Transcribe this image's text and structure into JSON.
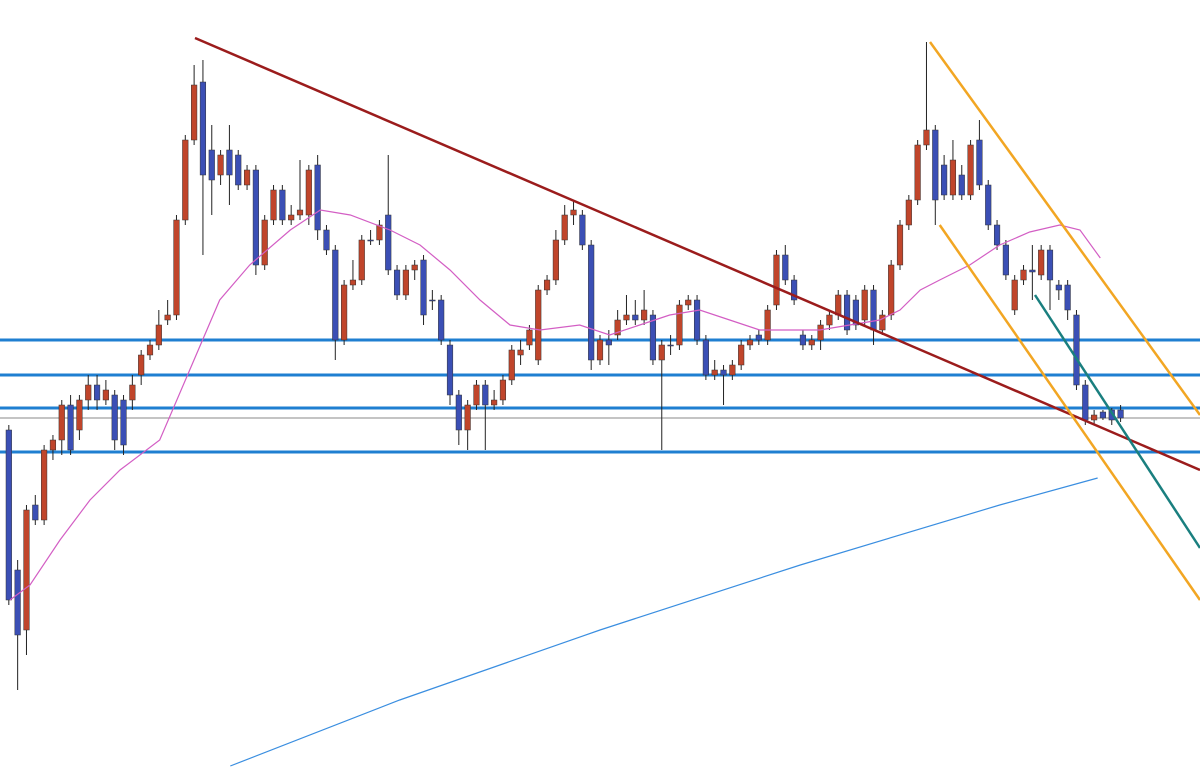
{
  "chart_data": {
    "type": "candlestick",
    "xlim": [
      -1,
      135
    ],
    "ylim": [
      0,
      768
    ],
    "up_color": "#c0452b",
    "down_color": "#3b4fb5",
    "wick_color": "#222222",
    "open": [
      338,
      198,
      138,
      263,
      248,
      318,
      328,
      363,
      338,
      368,
      383,
      368,
      373,
      368,
      368,
      393,
      413,
      423,
      448,
      453,
      548,
      628,
      686,
      618,
      593,
      618,
      613,
      583,
      598,
      503,
      548,
      578,
      548,
      553,
      553,
      603,
      538,
      518,
      428,
      483,
      488,
      528,
      528,
      553,
      498,
      473,
      498,
      508,
      468,
      468,
      423,
      373,
      338,
      363,
      383,
      363,
      368,
      388,
      413,
      423,
      408,
      478,
      488,
      528,
      553,
      553,
      523,
      408,
      428,
      433,
      448,
      453,
      448,
      453,
      408,
      423,
      423,
      463,
      468,
      428,
      393,
      398,
      393,
      403,
      423,
      433,
      428,
      463,
      513,
      488,
      433,
      423,
      428,
      443,
      453,
      473,
      468,
      448,
      478,
      438,
      453,
      503,
      543,
      568,
      623,
      638,
      603,
      573,
      593,
      573,
      628,
      583,
      543,
      523,
      458,
      488,
      498,
      493,
      518,
      483,
      483,
      453,
      383,
      348,
      356,
      358,
      358
    ],
    "high": [
      343,
      208,
      263,
      273,
      323,
      333,
      368,
      373,
      373,
      393,
      393,
      388,
      378,
      373,
      393,
      418,
      428,
      458,
      468,
      553,
      633,
      703,
      708,
      643,
      618,
      643,
      618,
      603,
      603,
      553,
      583,
      583,
      563,
      608,
      603,
      613,
      543,
      523,
      488,
      508,
      533,
      538,
      548,
      613,
      503,
      503,
      508,
      513,
      478,
      473,
      428,
      378,
      368,
      388,
      388,
      378,
      393,
      423,
      428,
      443,
      483,
      493,
      538,
      563,
      568,
      558,
      528,
      433,
      438,
      458,
      473,
      468,
      478,
      458,
      428,
      433,
      468,
      473,
      473,
      433,
      408,
      403,
      408,
      428,
      433,
      438,
      463,
      518,
      523,
      493,
      438,
      433,
      448,
      458,
      478,
      478,
      473,
      483,
      483,
      458,
      508,
      548,
      573,
      628,
      726,
      643,
      613,
      628,
      603,
      628,
      648,
      588,
      548,
      528,
      493,
      503,
      523,
      523,
      523,
      488,
      488,
      458,
      388,
      358,
      358,
      360,
      363
    ],
    "low": [
      163,
      78,
      113,
      243,
      243,
      308,
      313,
      313,
      328,
      358,
      358,
      363,
      318,
      313,
      358,
      383,
      408,
      418,
      443,
      448,
      543,
      623,
      513,
      553,
      583,
      563,
      578,
      578,
      493,
      498,
      543,
      543,
      543,
      548,
      543,
      528,
      513,
      408,
      423,
      478,
      483,
      523,
      523,
      493,
      468,
      468,
      488,
      443,
      458,
      423,
      363,
      323,
      318,
      358,
      318,
      358,
      363,
      383,
      403,
      418,
      403,
      473,
      483,
      523,
      543,
      518,
      398,
      403,
      403,
      428,
      443,
      443,
      443,
      403,
      318,
      413,
      418,
      458,
      423,
      388,
      388,
      363,
      388,
      398,
      418,
      423,
      423,
      458,
      483,
      463,
      418,
      418,
      418,
      438,
      448,
      433,
      438,
      443,
      423,
      433,
      448,
      498,
      538,
      563,
      618,
      543,
      568,
      568,
      568,
      568,
      578,
      538,
      518,
      488,
      453,
      483,
      468,
      488,
      458,
      468,
      448,
      378,
      343,
      343,
      348,
      343,
      346
    ],
    "close": [
      168,
      133,
      258,
      248,
      318,
      328,
      363,
      318,
      368,
      383,
      368,
      378,
      328,
      323,
      383,
      413,
      423,
      443,
      453,
      548,
      628,
      683,
      593,
      588,
      613,
      593,
      583,
      598,
      503,
      548,
      578,
      548,
      553,
      558,
      598,
      538,
      518,
      428,
      483,
      488,
      528,
      527,
      543,
      498,
      473,
      498,
      503,
      453,
      467,
      428,
      373,
      338,
      363,
      383,
      363,
      368,
      388,
      418,
      418,
      438,
      478,
      488,
      528,
      553,
      558,
      523,
      408,
      428,
      423,
      448,
      453,
      448,
      458,
      408,
      423,
      422,
      463,
      468,
      428,
      393,
      398,
      393,
      403,
      423,
      428,
      428,
      458,
      513,
      488,
      468,
      423,
      428,
      443,
      453,
      473,
      438,
      443,
      478,
      438,
      453,
      503,
      543,
      568,
      623,
      638,
      568,
      573,
      608,
      573,
      623,
      583,
      543,
      523,
      493,
      488,
      498,
      496,
      518,
      488,
      478,
      458,
      383,
      348,
      353,
      350,
      348,
      350
    ],
    "levels": [
      {
        "value": 428,
        "color": "#1f7fd1"
      },
      {
        "value": 393,
        "color": "#1f7fd1"
      },
      {
        "value": 360,
        "color": "#1f7fd1"
      },
      {
        "value": 316,
        "color": "#1f7fd1"
      },
      {
        "value": 350,
        "color": "#8a8a8a"
      }
    ],
    "overlays": [
      {
        "color": "#d35ec4",
        "x": [
          0.13,
          2.4,
          5.8,
          9.2,
          12.6,
          17.1,
          20.5,
          23.9,
          27.3,
          31.9,
          35.3,
          38.7,
          43.2,
          46.6,
          50,
          53.4,
          56.8,
          60.2,
          64.7,
          68.1,
          71.5,
          74.9,
          78.3,
          81.7,
          85.1,
          88.5,
          91.9,
          95.3,
          98.7,
          101,
          103.3,
          105.5,
          108.9,
          112.3,
          115.7,
          119.1,
          121.4,
          123.7
        ],
        "values": [
          168,
          183,
          228,
          268,
          298,
          328,
          398,
          468,
          503,
          538,
          558,
          553,
          538,
          523,
          498,
          468,
          443,
          438,
          443,
          433,
          443,
          453,
          458,
          448,
          438,
          438,
          438,
          443,
          448,
          458,
          478,
          488,
          503,
          523,
          536,
          543,
          538,
          510
        ]
      },
      {
        "color": "#3a8ee0",
        "x": [
          25.1,
          44.3,
          67,
          89.7,
          112.3,
          123.4
        ],
        "values": [
          2,
          68,
          138,
          203,
          263,
          290
        ]
      },
      {
        "color": "#9b1c1c",
        "x": [
          21.1,
          135
        ],
        "values": [
          730,
          298
        ]
      },
      {
        "color": "#f2a623",
        "x": [
          104.4,
          135
        ],
        "values": [
          726,
          353
        ]
      },
      {
        "color": "#f2a623",
        "x": [
          105.5,
          135
        ],
        "values": [
          543,
          168
        ]
      },
      {
        "color": "#1a7f7f",
        "x": [
          116.3,
          135
        ],
        "values": [
          473,
          220
        ]
      }
    ]
  }
}
